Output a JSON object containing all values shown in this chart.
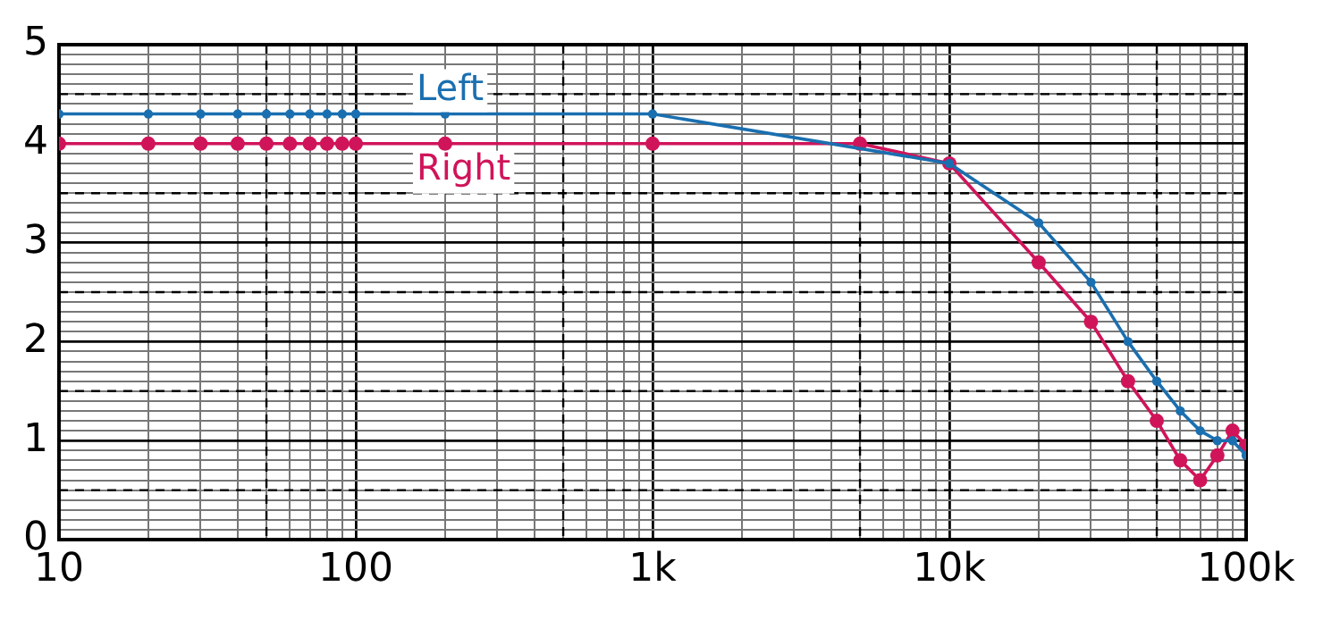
{
  "chart_data": {
    "type": "line",
    "log": "x",
    "grid": true,
    "legend": false,
    "marker": "circle",
    "line_style": "solid",
    "xlim": [
      10,
      100000
    ],
    "ylim": [
      0,
      5
    ],
    "xticks": [
      {
        "value": 10,
        "label": "10"
      },
      {
        "value": 20,
        "label": null
      },
      {
        "value": 30,
        "label": null
      },
      {
        "value": 40,
        "label": null
      },
      {
        "value": 50,
        "label": null
      },
      {
        "value": 60,
        "label": null
      },
      {
        "value": 70,
        "label": null
      },
      {
        "value": 80,
        "label": null
      },
      {
        "value": 90,
        "label": null
      },
      {
        "value": 100,
        "label": "100"
      },
      {
        "value": 200,
        "label": null
      },
      {
        "value": 300,
        "label": null
      },
      {
        "value": 400,
        "label": null
      },
      {
        "value": 500,
        "label": null
      },
      {
        "value": 600,
        "label": null
      },
      {
        "value": 700,
        "label": null
      },
      {
        "value": 800,
        "label": null
      },
      {
        "value": 900,
        "label": null
      },
      {
        "value": 1000,
        "label": "1k"
      },
      {
        "value": 2000,
        "label": null
      },
      {
        "value": 3000,
        "label": null
      },
      {
        "value": 4000,
        "label": null
      },
      {
        "value": 5000,
        "label": null
      },
      {
        "value": 6000,
        "label": null
      },
      {
        "value": 7000,
        "label": null
      },
      {
        "value": 8000,
        "label": null
      },
      {
        "value": 9000,
        "label": null
      },
      {
        "value": 10000,
        "label": "10k"
      },
      {
        "value": 20000,
        "label": null
      },
      {
        "value": 30000,
        "label": null
      },
      {
        "value": 40000,
        "label": null
      },
      {
        "value": 50000,
        "label": null
      },
      {
        "value": 60000,
        "label": null
      },
      {
        "value": 70000,
        "label": null
      },
      {
        "value": 80000,
        "label": null
      },
      {
        "value": 90000,
        "label": null
      },
      {
        "value": 100000,
        "label": "100k"
      }
    ],
    "yticks": [
      0,
      {
        "value": 0.1,
        "label": null
      },
      {
        "value": 0.2,
        "label": null
      },
      {
        "value": 0.3,
        "label": null
      },
      {
        "value": 0.4,
        "label": null
      },
      {
        "value": 0.5,
        "label": null
      },
      {
        "value": 0.6,
        "label": null
      },
      {
        "value": 0.7,
        "label": null
      },
      {
        "value": 0.8,
        "label": null
      },
      {
        "value": 0.9,
        "label": null
      },
      1,
      {
        "value": 1.1,
        "label": null
      },
      {
        "value": 1.2,
        "label": null
      },
      {
        "value": 1.3,
        "label": null
      },
      {
        "value": 1.4,
        "label": null
      },
      {
        "value": 1.5,
        "label": null
      },
      {
        "value": 1.6,
        "label": null
      },
      {
        "value": 1.7,
        "label": null
      },
      {
        "value": 1.8,
        "label": null
      },
      {
        "value": 1.9,
        "label": null
      },
      2,
      {
        "value": 2.1,
        "label": null
      },
      {
        "value": 2.2,
        "label": null
      },
      {
        "value": 2.3,
        "label": null
      },
      {
        "value": 2.4,
        "label": null
      },
      {
        "value": 2.5,
        "label": null
      },
      {
        "value": 2.6,
        "label": null
      },
      {
        "value": 2.7,
        "label": null
      },
      {
        "value": 2.8,
        "label": null
      },
      {
        "value": 2.9,
        "label": null
      },
      3,
      {
        "value": 3.1,
        "label": null
      },
      {
        "value": 3.2,
        "label": null
      },
      {
        "value": 3.3,
        "label": null
      },
      {
        "value": 3.4,
        "label": null
      },
      {
        "value": 3.5,
        "label": null
      },
      {
        "value": 3.6,
        "label": null
      },
      {
        "value": 3.7,
        "label": null
      },
      {
        "value": 3.8,
        "label": null
      },
      {
        "value": 3.9,
        "label": null
      },
      4,
      {
        "value": 4.1,
        "label": null
      },
      {
        "value": 4.2,
        "label": null
      },
      {
        "value": 4.3,
        "label": null
      },
      {
        "value": 4.4,
        "label": null
      },
      {
        "value": 4.5,
        "label": null
      },
      {
        "value": 4.6,
        "label": null
      },
      {
        "value": 4.7,
        "label": null
      },
      {
        "value": 4.8,
        "label": null
      },
      {
        "value": 4.9,
        "label": null
      },
      5
    ],
    "series": [
      {
        "name": "Left",
        "color": "#1a6fb0",
        "x": [
          10,
          20,
          30,
          40,
          50,
          60,
          70,
          80,
          90,
          100,
          200,
          1000,
          10000,
          20000,
          30000,
          40000,
          50000,
          60000,
          70000,
          80000,
          90000,
          100000
        ],
        "values": [
          4.3,
          4.3,
          4.3,
          4.3,
          4.3,
          4.3,
          4.3,
          4.3,
          4.3,
          4.3,
          4.3,
          4.3,
          3.8,
          3.2,
          2.6,
          2.0,
          1.6,
          1.3,
          1.1,
          1.0,
          1.0,
          0.85
        ]
      },
      {
        "name": "Right",
        "color": "#d0145a",
        "x": [
          10,
          20,
          30,
          40,
          50,
          60,
          70,
          80,
          90,
          100,
          200,
          1000,
          5000,
          10000,
          20000,
          30000,
          40000,
          50000,
          60000,
          70000,
          80000,
          90000,
          100000
        ],
        "values": [
          4.0,
          4.0,
          4.0,
          4.0,
          4.0,
          4.0,
          4.0,
          4.0,
          4.0,
          4.0,
          4.0,
          4.0,
          4.0,
          3.8,
          2.8,
          2.2,
          1.6,
          1.2,
          0.8,
          0.6,
          0.85,
          1.1,
          0.95
        ]
      }
    ]
  }
}
